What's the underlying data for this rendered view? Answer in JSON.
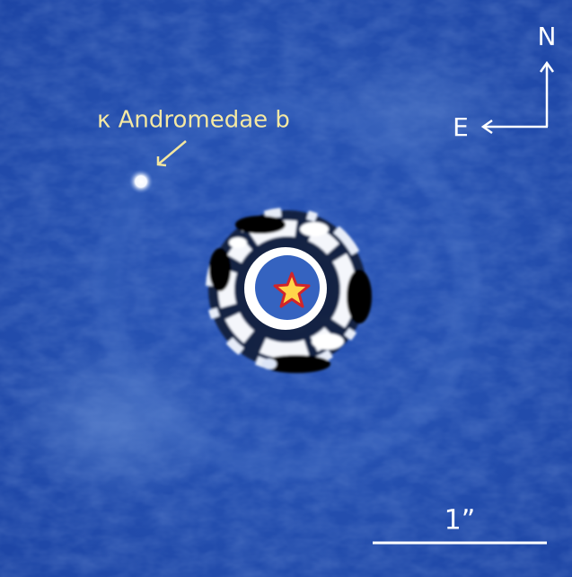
{
  "label": {
    "planet": "κ Andromedae b"
  },
  "compass": {
    "north": "N",
    "east": "E"
  },
  "scale_bar": {
    "label": "1”"
  }
}
